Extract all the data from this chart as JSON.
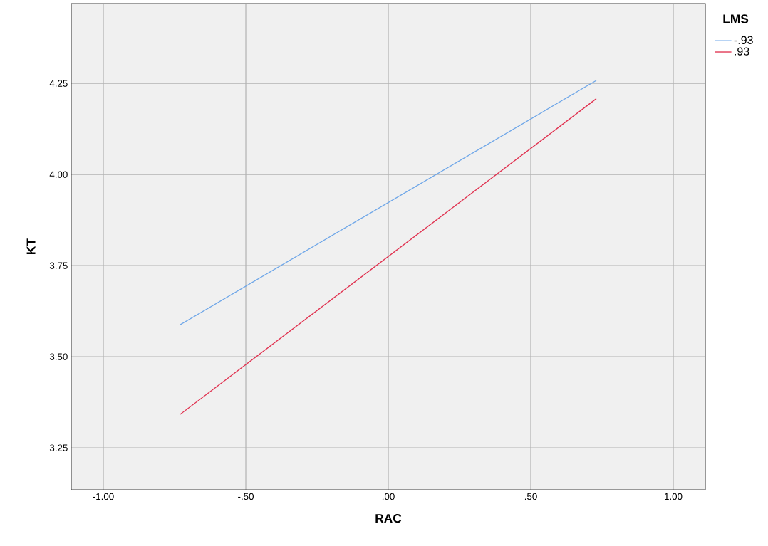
{
  "chart_data": {
    "type": "line",
    "xlabel": "RAC",
    "ylabel": "KT",
    "legend_title": "LMS",
    "legend": "top right",
    "grid": true,
    "xlim": [
      -1.1125,
      1.1125
    ],
    "ylim": [
      3.135,
      4.469
    ],
    "xticks": [
      {
        "value": -1,
        "label": "-1.00"
      },
      {
        "value": -0.5,
        "label": "-.50"
      },
      {
        "value": 0,
        "label": ".00"
      },
      {
        "value": 0.5,
        "label": ".50"
      },
      {
        "value": 1,
        "label": "1.00"
      }
    ],
    "yticks": [
      {
        "value": 3.25,
        "label": "3.25"
      },
      {
        "value": 3.5,
        "label": "3.50"
      },
      {
        "value": 3.75,
        "label": "3.75"
      },
      {
        "value": 4.0,
        "label": "4.00"
      },
      {
        "value": 4.25,
        "label": "4.25"
      }
    ],
    "x": [
      -0.73,
      0.73
    ],
    "series": [
      {
        "name": "-.93",
        "color": "#6ea6e8",
        "values": [
          3.588,
          4.258
        ]
      },
      {
        "name": ".93",
        "color": "#e0314f",
        "values": [
          3.342,
          4.208
        ]
      }
    ]
  }
}
